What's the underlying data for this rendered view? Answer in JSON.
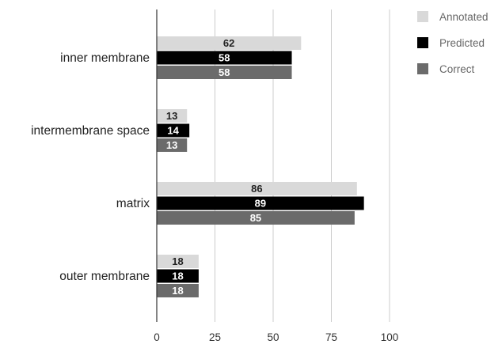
{
  "chart_data": {
    "type": "bar",
    "orientation": "horizontal",
    "title": "",
    "xlabel": "",
    "ylabel": "",
    "categories": [
      "inner membrane",
      "intermembrane space",
      "matrix",
      "outer membrane"
    ],
    "series": [
      {
        "name": "Annotated",
        "values": [
          62,
          13,
          86,
          18
        ],
        "color": "#d9d9d9",
        "label_color": "#222222"
      },
      {
        "name": "Predicted",
        "values": [
          58,
          14,
          89,
          18
        ],
        "color": "#000000",
        "label_color": "#ffffff"
      },
      {
        "name": "Correct",
        "values": [
          58,
          13,
          85,
          18
        ],
        "color": "#6b6b6b",
        "label_color": "#ffffff"
      }
    ],
    "xlim": [
      0,
      100
    ],
    "xticks": [
      "0",
      "25",
      "50",
      "75",
      "100"
    ],
    "xtick_values": [
      0,
      25,
      50,
      75,
      100
    ],
    "grid": "vertical",
    "legend_position": "right",
    "data_labels": true
  }
}
